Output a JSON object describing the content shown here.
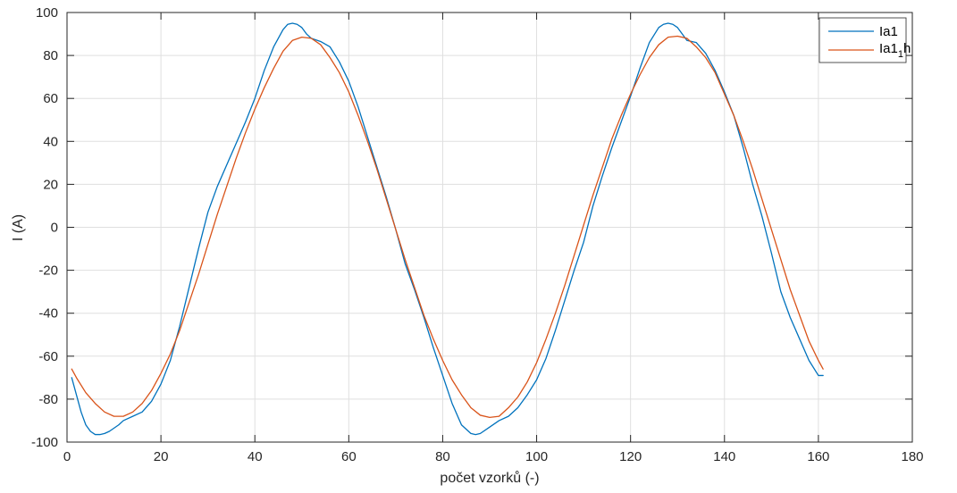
{
  "chart_data": {
    "type": "line",
    "title": "",
    "xlabel": "počet vzorků (-)",
    "ylabel": "I (A)",
    "xlim": [
      0,
      180
    ],
    "ylim": [
      -100,
      100
    ],
    "xticks": [
      0,
      20,
      40,
      60,
      80,
      100,
      120,
      140,
      160,
      180
    ],
    "yticks": [
      -100,
      -80,
      -60,
      -40,
      -20,
      0,
      20,
      40,
      60,
      80,
      100
    ],
    "xtick_labels": [
      "0",
      "20",
      "40",
      "60",
      "80",
      "100",
      "120",
      "140",
      "160",
      "180"
    ],
    "ytick_labels": [
      "-100",
      "-80",
      "-60",
      "-40",
      "-20",
      "0",
      "20",
      "40",
      "60",
      "80",
      "100"
    ],
    "grid": true,
    "legend_position": "top-right",
    "series": [
      {
        "name": "Ia1",
        "legend_main": "Ia1",
        "color": "#0072BD",
        "x": [
          1,
          2,
          3,
          4,
          5,
          6,
          7,
          8,
          9,
          10,
          11,
          12,
          14,
          16,
          18,
          20,
          22,
          24,
          26,
          28,
          30,
          32,
          34,
          36,
          38,
          40,
          42,
          44,
          46,
          47,
          48,
          49,
          50,
          51,
          52,
          54,
          56,
          58,
          60,
          62,
          64,
          66,
          68,
          70,
          72,
          74,
          76,
          78,
          80,
          82,
          84,
          86,
          87,
          88,
          90,
          92,
          94,
          96,
          98,
          100,
          102,
          104,
          106,
          108,
          110,
          112,
          114,
          116,
          118,
          120,
          122,
          124,
          126,
          127,
          128,
          129,
          130,
          131,
          132,
          134,
          136,
          138,
          140,
          142,
          144,
          146,
          148,
          150,
          152,
          154,
          156,
          158,
          160,
          161
        ],
        "values": [
          -70,
          -78,
          -86,
          -92,
          -95,
          -96.5,
          -96.5,
          -96,
          -95,
          -93.5,
          -92,
          -90,
          -88,
          -86,
          -81,
          -73,
          -62,
          -46,
          -28,
          -10,
          7,
          19,
          29,
          39,
          49,
          60,
          73,
          84,
          92,
          94.5,
          95,
          94.5,
          93,
          90,
          88,
          86.5,
          84,
          77,
          68,
          56,
          42,
          28,
          14,
          -1,
          -17,
          -29,
          -42,
          -56,
          -69,
          -82,
          -92,
          -96,
          -96.5,
          -96,
          -93,
          -90,
          -88,
          -84,
          -78,
          -71,
          -61,
          -48,
          -34,
          -20,
          -7,
          10,
          24,
          37,
          49,
          61,
          74,
          86,
          93,
          94.5,
          95,
          94.5,
          93,
          90,
          87,
          86,
          81,
          73,
          63,
          52,
          37,
          20,
          5,
          -12,
          -30,
          -42,
          -52,
          -62,
          -69,
          -69
        ]
      },
      {
        "name": "Ia1_1h",
        "legend_main": "Ia1",
        "legend_sub": "1",
        "legend_suffix": "h",
        "color": "#D95319",
        "x": [
          1,
          2,
          4,
          6,
          8,
          10,
          12,
          14,
          16,
          18,
          20,
          22,
          24,
          26,
          28,
          30,
          32,
          34,
          36,
          38,
          40,
          42,
          44,
          46,
          48,
          50,
          52,
          54,
          56,
          58,
          60,
          62,
          64,
          66,
          68,
          70,
          72,
          74,
          76,
          78,
          80,
          82,
          84,
          86,
          88,
          90,
          92,
          94,
          96,
          98,
          100,
          102,
          104,
          106,
          108,
          110,
          112,
          114,
          116,
          118,
          120,
          122,
          124,
          126,
          128,
          130,
          132,
          134,
          136,
          138,
          140,
          142,
          144,
          146,
          148,
          150,
          152,
          154,
          156,
          158,
          160,
          161
        ],
        "values": [
          -66,
          -70,
          -77,
          -82,
          -86,
          -88,
          -88,
          -86,
          -82,
          -76,
          -68,
          -59,
          -48,
          -35,
          -22,
          -8,
          6,
          19,
          32,
          44,
          55,
          65,
          74,
          82,
          87,
          88.5,
          88,
          85,
          79,
          72,
          63,
          52,
          40,
          27,
          13,
          -1,
          -15,
          -28,
          -41,
          -52,
          -62,
          -71,
          -78,
          -84,
          -87.5,
          -88.5,
          -88,
          -84,
          -79,
          -72,
          -63,
          -52,
          -40,
          -27,
          -13,
          1,
          15,
          28,
          41,
          52,
          62,
          71,
          79,
          85,
          88.5,
          89,
          88,
          84,
          79,
          72,
          62,
          52,
          40,
          27,
          13,
          -1,
          -15,
          -29,
          -41,
          -53,
          -62,
          -66
        ]
      }
    ]
  }
}
